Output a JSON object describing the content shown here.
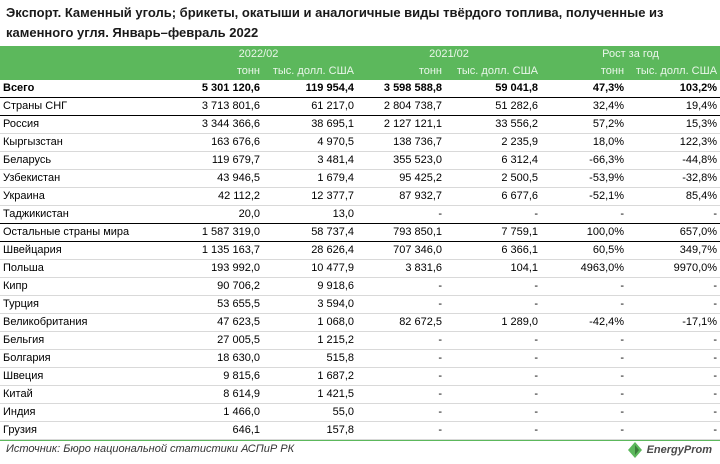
{
  "title": "Экспорт. Каменный уголь; брикеты, окатыши и аналогичные виды твёрдого топлива, полученные из каменного угля. Январь–февраль 2022",
  "header": {
    "periods": [
      "2022/02",
      "2021/02",
      "Рост за год"
    ],
    "units": [
      "тонн",
      "тыс. долл. США",
      "тонн",
      "тыс. долл. США",
      "тонн",
      "тыс. долл. США"
    ]
  },
  "rows": [
    {
      "name": "Всего",
      "kind": "total",
      "values": [
        "5 301 120,6",
        "119 954,4",
        "3 598 588,8",
        "59 041,8",
        "47,3%",
        "103,2%"
      ]
    },
    {
      "name": "Страны СНГ",
      "kind": "group",
      "values": [
        "3 713 801,6",
        "61 217,0",
        "2 804 738,7",
        "51 282,6",
        "32,4%",
        "19,4%"
      ]
    },
    {
      "name": "Россия",
      "kind": "item",
      "values": [
        "3 344 366,6",
        "38 695,1",
        "2 127 121,1",
        "33 556,2",
        "57,2%",
        "15,3%"
      ]
    },
    {
      "name": "Кыргызстан",
      "kind": "item",
      "values": [
        "163 676,6",
        "4 970,5",
        "138 736,7",
        "2 235,9",
        "18,0%",
        "122,3%"
      ]
    },
    {
      "name": "Беларусь",
      "kind": "item",
      "values": [
        "119 679,7",
        "3 481,4",
        "355 523,0",
        "6 312,4",
        "-66,3%",
        "-44,8%"
      ]
    },
    {
      "name": "Узбекистан",
      "kind": "item",
      "values": [
        "43 946,5",
        "1 679,4",
        "95 425,2",
        "2 500,5",
        "-53,9%",
        "-32,8%"
      ]
    },
    {
      "name": "Украина",
      "kind": "item",
      "values": [
        "42 112,2",
        "12 377,7",
        "87 932,7",
        "6 677,6",
        "-52,1%",
        "85,4%"
      ]
    },
    {
      "name": "Таджикистан",
      "kind": "item-last",
      "values": [
        "20,0",
        "13,0",
        "-",
        "-",
        "-",
        "-"
      ]
    },
    {
      "name": "Остальные страны мира",
      "kind": "group",
      "values": [
        "1 587 319,0",
        "58 737,4",
        "793 850,1",
        "7 759,1",
        "100,0%",
        "657,0%"
      ]
    },
    {
      "name": "Швейцария",
      "kind": "item",
      "values": [
        "1 135 163,7",
        "28 626,4",
        "707 346,0",
        "6 366,1",
        "60,5%",
        "349,7%"
      ]
    },
    {
      "name": "Польша",
      "kind": "item",
      "values": [
        "193 992,0",
        "10 477,9",
        "3 831,6",
        "104,1",
        "4963,0%",
        "9970,0%"
      ]
    },
    {
      "name": "Кипр",
      "kind": "item",
      "values": [
        "90 706,2",
        "9 918,6",
        "-",
        "-",
        "-",
        "-"
      ]
    },
    {
      "name": "Турция",
      "kind": "item",
      "values": [
        "53 655,5",
        "3 594,0",
        "-",
        "-",
        "-",
        "-"
      ]
    },
    {
      "name": "Великобритания",
      "kind": "item",
      "values": [
        "47 623,5",
        "1 068,0",
        "82 672,5",
        "1 289,0",
        "-42,4%",
        "-17,1%"
      ]
    },
    {
      "name": "Бельгия",
      "kind": "item",
      "values": [
        "27 005,5",
        "1 215,2",
        "-",
        "-",
        "-",
        "-"
      ]
    },
    {
      "name": "Болгария",
      "kind": "item",
      "values": [
        "18 630,0",
        "515,8",
        "-",
        "-",
        "-",
        "-"
      ]
    },
    {
      "name": "Швеция",
      "kind": "item",
      "values": [
        "9 815,6",
        "1 687,2",
        "-",
        "-",
        "-",
        "-"
      ]
    },
    {
      "name": "Китай",
      "kind": "item",
      "values": [
        "8 614,9",
        "1 421,5",
        "-",
        "-",
        "-",
        "-"
      ]
    },
    {
      "name": "Индия",
      "kind": "item",
      "values": [
        "1 466,0",
        "55,0",
        "-",
        "-",
        "-",
        "-"
      ]
    },
    {
      "name": "Грузия",
      "kind": "item",
      "values": [
        "646,1",
        "157,8",
        "-",
        "-",
        "-",
        "-"
      ]
    }
  ],
  "source": "Источник: Бюро национальной статистики АСПиР РК",
  "logo": {
    "text": "EnergyProm",
    "icon": "energyprom-logo-icon",
    "color": "#5cb85c"
  }
}
